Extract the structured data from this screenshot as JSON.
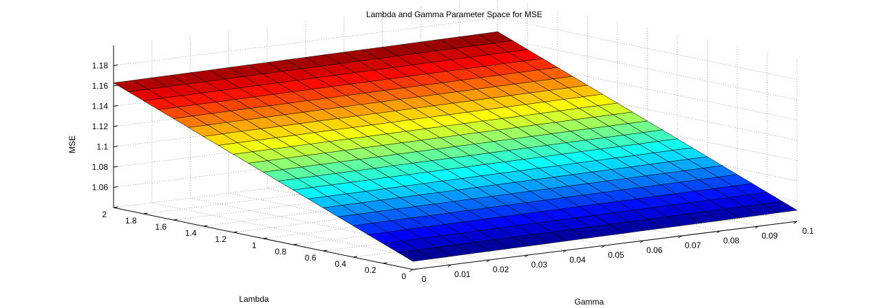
{
  "chart_data": {
    "type": "surface",
    "title": "Lambda and Gamma Parameter Space for MSE",
    "xlabel": "Gamma",
    "ylabel": "Lambda",
    "zlabel": "MSE",
    "x_ticks": [
      "0",
      "0.01",
      "0.02",
      "0.03",
      "0.04",
      "0.05",
      "0.06",
      "0.07",
      "0.08",
      "0.09",
      "0.1"
    ],
    "y_ticks": [
      "0",
      "0.2",
      "0.4",
      "0.6",
      "0.8",
      "1",
      "1.2",
      "1.4",
      "1.6",
      "1.8",
      "2"
    ],
    "z_ticks": [
      "1.06",
      "1.08",
      "1.1",
      "1.12",
      "1.14",
      "1.16",
      "1.18"
    ],
    "xlim": [
      0,
      0.1
    ],
    "ylim": [
      0,
      2
    ],
    "zlim": [
      1.04,
      1.2
    ],
    "colormap": "jet",
    "grid": true,
    "corner_values": [
      {
        "gamma": 0,
        "lambda": 0,
        "mse": 1.048
      },
      {
        "gamma": 0.1,
        "lambda": 0,
        "mse": 1.051
      },
      {
        "gamma": 0,
        "lambda": 2,
        "mse": 1.163
      },
      {
        "gamma": 0.1,
        "lambda": 2,
        "mse": 1.166
      }
    ]
  }
}
